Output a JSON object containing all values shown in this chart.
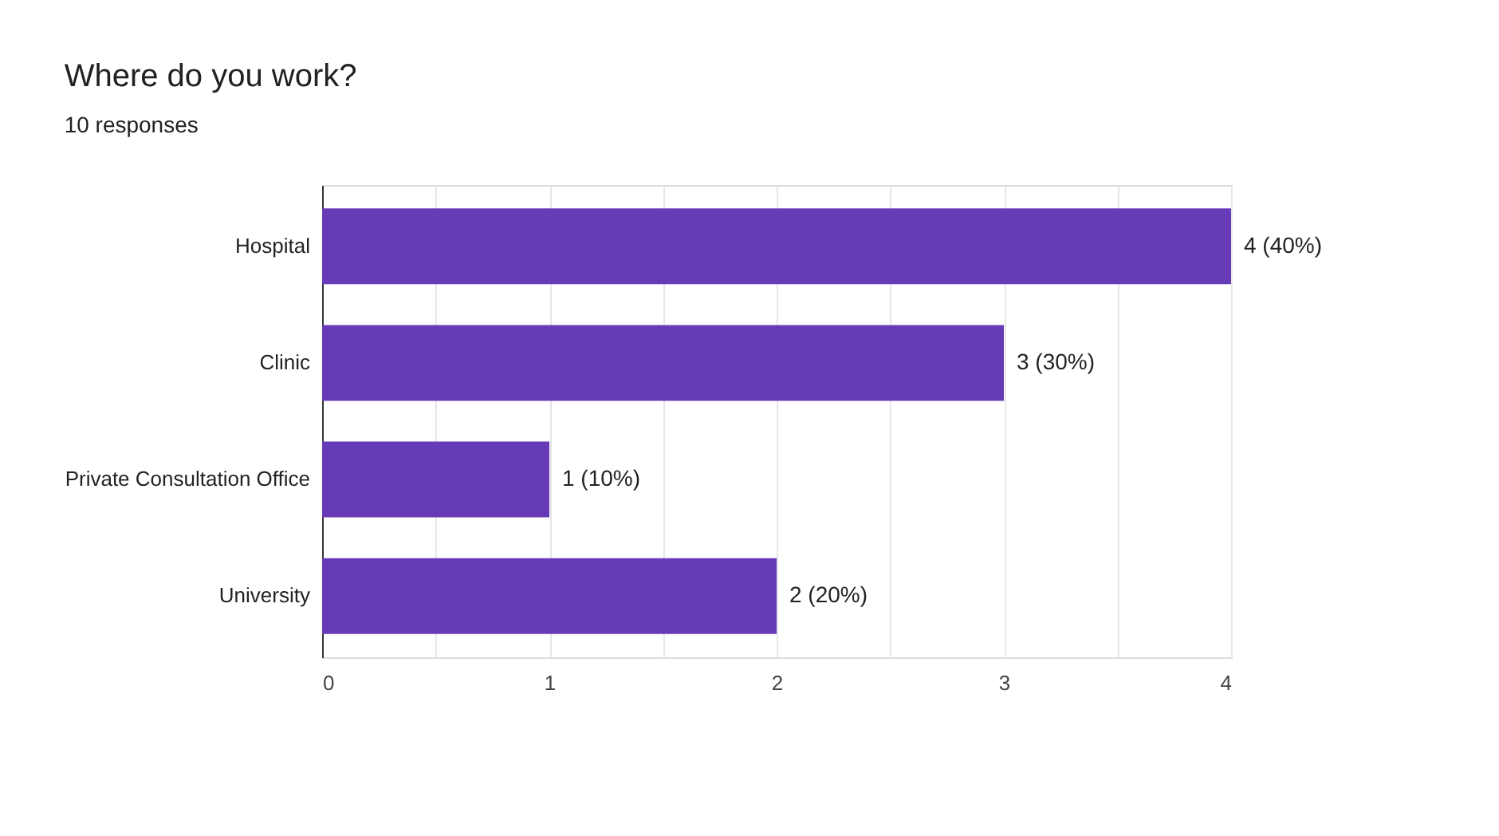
{
  "chart_data": {
    "type": "bar",
    "orientation": "horizontal",
    "title": "Where do you work?",
    "subtitle": "10 responses",
    "categories": [
      "Hospital",
      "Clinic",
      "Private Consultation Office",
      "University"
    ],
    "values": [
      4,
      3,
      1,
      2
    ],
    "color": "#673ab7",
    "value_labels": [
      "4 (40%)",
      "3 (30%)",
      "1 (10%)",
      "2 (20%)"
    ],
    "xlim": [
      0,
      4
    ],
    "xticks": [
      0,
      {
        "value": 0.5,
        "label": null
      },
      1,
      {
        "value": 1.5,
        "label": null
      },
      2,
      {
        "value": 2.5,
        "label": null
      },
      3,
      {
        "value": 3.5,
        "label": null
      },
      4
    ],
    "grid": "x"
  }
}
